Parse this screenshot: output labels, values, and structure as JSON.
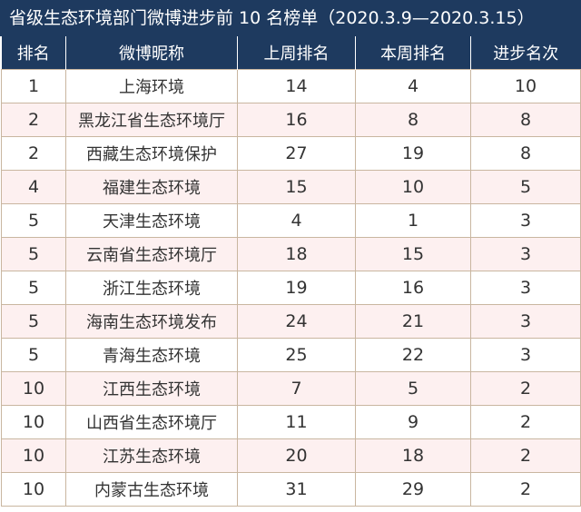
{
  "title": "省级生态环境部门微博进步前 10 名榜单（2020.3.9—2020.3.15）",
  "headers": [
    "排名",
    "微博昵称",
    "上周排名",
    "本周排名",
    "进步名次"
  ],
  "rows": [
    [
      "1",
      "上海环境",
      "14",
      "4",
      "10"
    ],
    [
      "2",
      "黑龙江省生态环境厅",
      "16",
      "8",
      "8"
    ],
    [
      "2",
      "西藏生态环境保护",
      "27",
      "19",
      "8"
    ],
    [
      "4",
      "福建生态环境",
      "15",
      "10",
      "5"
    ],
    [
      "5",
      "天津生态环境",
      "4",
      "1",
      "3"
    ],
    [
      "5",
      "云南省生态环境厅",
      "18",
      "15",
      "3"
    ],
    [
      "5",
      "浙江生态环境",
      "19",
      "16",
      "3"
    ],
    [
      "5",
      "海南生态环境发布",
      "24",
      "21",
      "3"
    ],
    [
      "5",
      "青海生态环境",
      "25",
      "22",
      "3"
    ],
    [
      "10",
      "江西生态环境",
      "7",
      "5",
      "2"
    ],
    [
      "10",
      "山西省生态环境厅",
      "11",
      "9",
      "2"
    ],
    [
      "10",
      "江苏生态环境",
      "20",
      "18",
      "2"
    ],
    [
      "10",
      "内蒙古生态环境",
      "31",
      "29",
      "2"
    ]
  ]
}
